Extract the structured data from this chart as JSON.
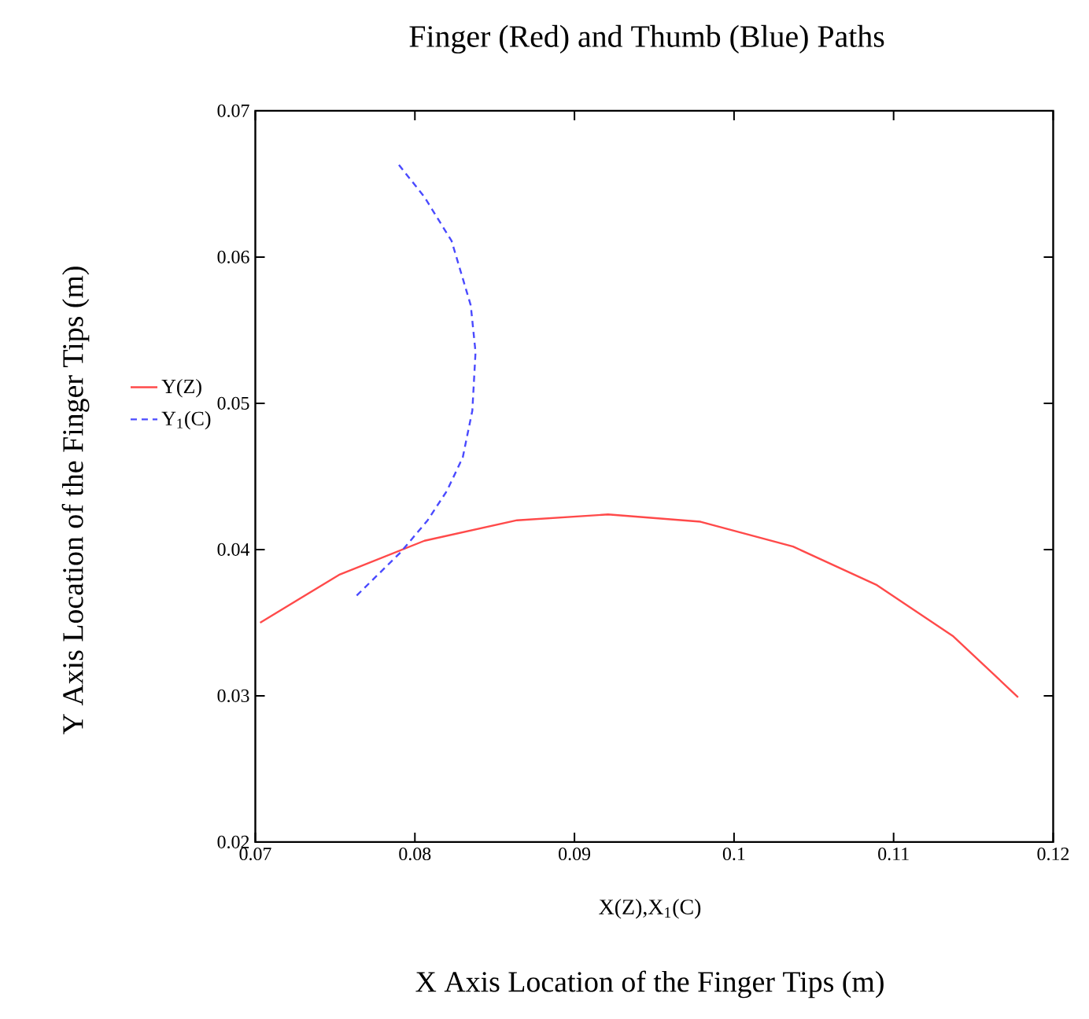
{
  "chart_data": {
    "type": "line",
    "title": "Finger (Red) and Thumb (Blue) Paths",
    "xlabel": "X Axis Location of the Finger Tips (m)",
    "ylabel": "Y Axis Location of the Finger Tips (m)",
    "annotations": [
      "X(Z),X$_{1}$(C)"
    ],
    "xlim": [
      0.07,
      0.12
    ],
    "ylim": [
      0.02,
      0.07
    ],
    "xticks": [
      0.07,
      0.08,
      0.09,
      0.1,
      0.11,
      0.12
    ],
    "yticks": [
      0.02,
      0.03,
      0.04,
      0.05,
      0.06,
      0.07
    ],
    "grid": false,
    "legend": "left",
    "marker": "none",
    "series": [
      {
        "name": "Y(Z)",
        "color": "#ff4a4a",
        "line_style": "solid",
        "x": [
          0.0703,
          0.0753,
          0.0806,
          0.0864,
          0.0921,
          0.0979,
          0.1037,
          0.1089,
          0.1137,
          0.1178
        ],
        "values": [
          0.035,
          0.0383,
          0.0406,
          0.042,
          0.0424,
          0.0419,
          0.0402,
          0.0376,
          0.0341,
          0.0299
        ]
      },
      {
        "name": "Y$_{1}$(C)",
        "color": "#4a4aff",
        "line_style": "dashed",
        "x": [
          0.079,
          0.0806,
          0.0823,
          0.0826,
          0.0835,
          0.0838,
          0.0836,
          0.083,
          0.082,
          0.0808,
          0.0791,
          0.0763
        ],
        "values": [
          0.0663,
          0.0641,
          0.0611,
          0.06,
          0.0567,
          0.0535,
          0.0495,
          0.0463,
          0.044,
          0.042,
          0.0398,
          0.0368
        ]
      }
    ]
  }
}
